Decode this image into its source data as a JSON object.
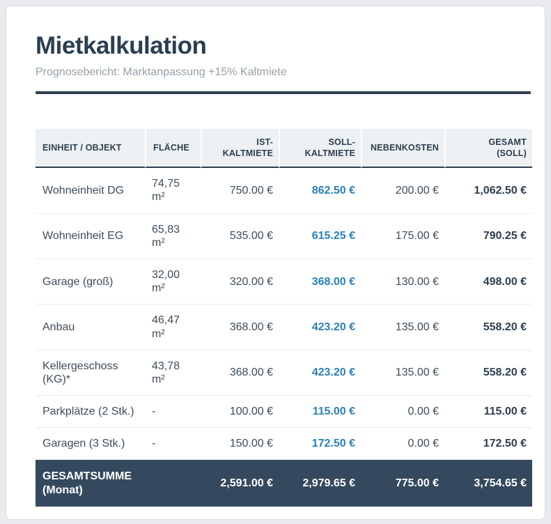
{
  "report": {
    "title": "Mietkalkulation",
    "subtitle": "Prognosebericht: Marktanpassung +15% Kaltmiete"
  },
  "table": {
    "columns": [
      "EINHEIT / OBJEKT",
      "FLÄCHE",
      "IST-KALTMIETE",
      "SOLL-KALTMIETE",
      "NEBENKOSTEN",
      "GESAMT (SOLL)"
    ],
    "rows": [
      {
        "einheit": "Wohneinheit DG",
        "flaeche": "74,75 m²",
        "ist": "750.00 €",
        "soll": "862.50 €",
        "nebenkosten": "200.00 €",
        "gesamt": "1,062.50 €"
      },
      {
        "einheit": "Wohneinheit EG",
        "flaeche": "65,83 m²",
        "ist": "535.00 €",
        "soll": "615.25 €",
        "nebenkosten": "175.00 €",
        "gesamt": "790.25 €"
      },
      {
        "einheit": "Garage (groß)",
        "flaeche": "32,00 m²",
        "ist": "320.00 €",
        "soll": "368.00 €",
        "nebenkosten": "130.00 €",
        "gesamt": "498.00 €"
      },
      {
        "einheit": "Anbau",
        "flaeche": "46,47 m²",
        "ist": "368.00 €",
        "soll": "423.20 €",
        "nebenkosten": "135.00 €",
        "gesamt": "558.20 €"
      },
      {
        "einheit": "Kellergeschoss (KG)*",
        "flaeche": "43,78 m²",
        "ist": "368.00 €",
        "soll": "423.20 €",
        "nebenkosten": "135.00 €",
        "gesamt": "558.20 €"
      },
      {
        "einheit": "Parkplätze (2 Stk.)",
        "flaeche": "-",
        "ist": "100.00 €",
        "soll": "115.00 €",
        "nebenkosten": "0.00 €",
        "gesamt": "115.00 €"
      },
      {
        "einheit": "Garagen (3 Stk.)",
        "flaeche": "-",
        "ist": "150.00 €",
        "soll": "172.50 €",
        "nebenkosten": "0.00 €",
        "gesamt": "172.50 €"
      }
    ],
    "footer": {
      "label": "GESAMTSUMME (Monat)",
      "flaeche": "",
      "ist": "2,591.00 €",
      "soll": "2,979.65 €",
      "nebenkosten": "775.00 €",
      "gesamt": "3,754.65 €"
    }
  },
  "colors": {
    "heading_navy": "#2c3e50",
    "accent_blue": "#2980b9",
    "footer_bg": "#34495e",
    "header_row_bg": "#eef1f3",
    "page_bg": "#e9ebee"
  }
}
